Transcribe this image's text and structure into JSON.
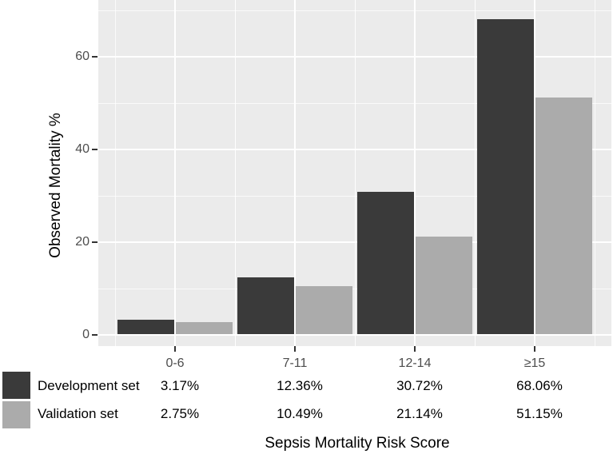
{
  "chart_data": {
    "type": "bar",
    "title": "",
    "xlabel": "Sepsis Mortality Risk Score",
    "ylabel": "Observed Mortality %",
    "categories": [
      "0-6",
      "7-11",
      "12-14",
      "≥15"
    ],
    "series": [
      {
        "name": "Development set",
        "color": "#3a3a3a",
        "values": [
          3.17,
          12.36,
          30.72,
          68.06
        ],
        "value_labels": [
          "3.17%",
          "12.36%",
          "30.72%",
          "68.06%"
        ]
      },
      {
        "name": "Validation set",
        "color": "#ababab",
        "values": [
          2.75,
          10.49,
          21.14,
          51.15
        ],
        "value_labels": [
          "2.75%",
          "10.49%",
          "21.14%",
          "51.15%"
        ]
      }
    ],
    "y_major_ticks": [
      0,
      20,
      40,
      60
    ],
    "y_minor_ticks": [
      10,
      30,
      50,
      70
    ],
    "ylim": [
      0,
      71.5
    ],
    "grid": true,
    "legend_position": "bottom-left",
    "colors": {
      "panel_bg": "#ebebeb",
      "grid": "#ffffff",
      "tick_label": "#4d4d4d",
      "tick_mark": "#333333",
      "text": "#000000",
      "outer_bg": "#ffffff"
    }
  }
}
